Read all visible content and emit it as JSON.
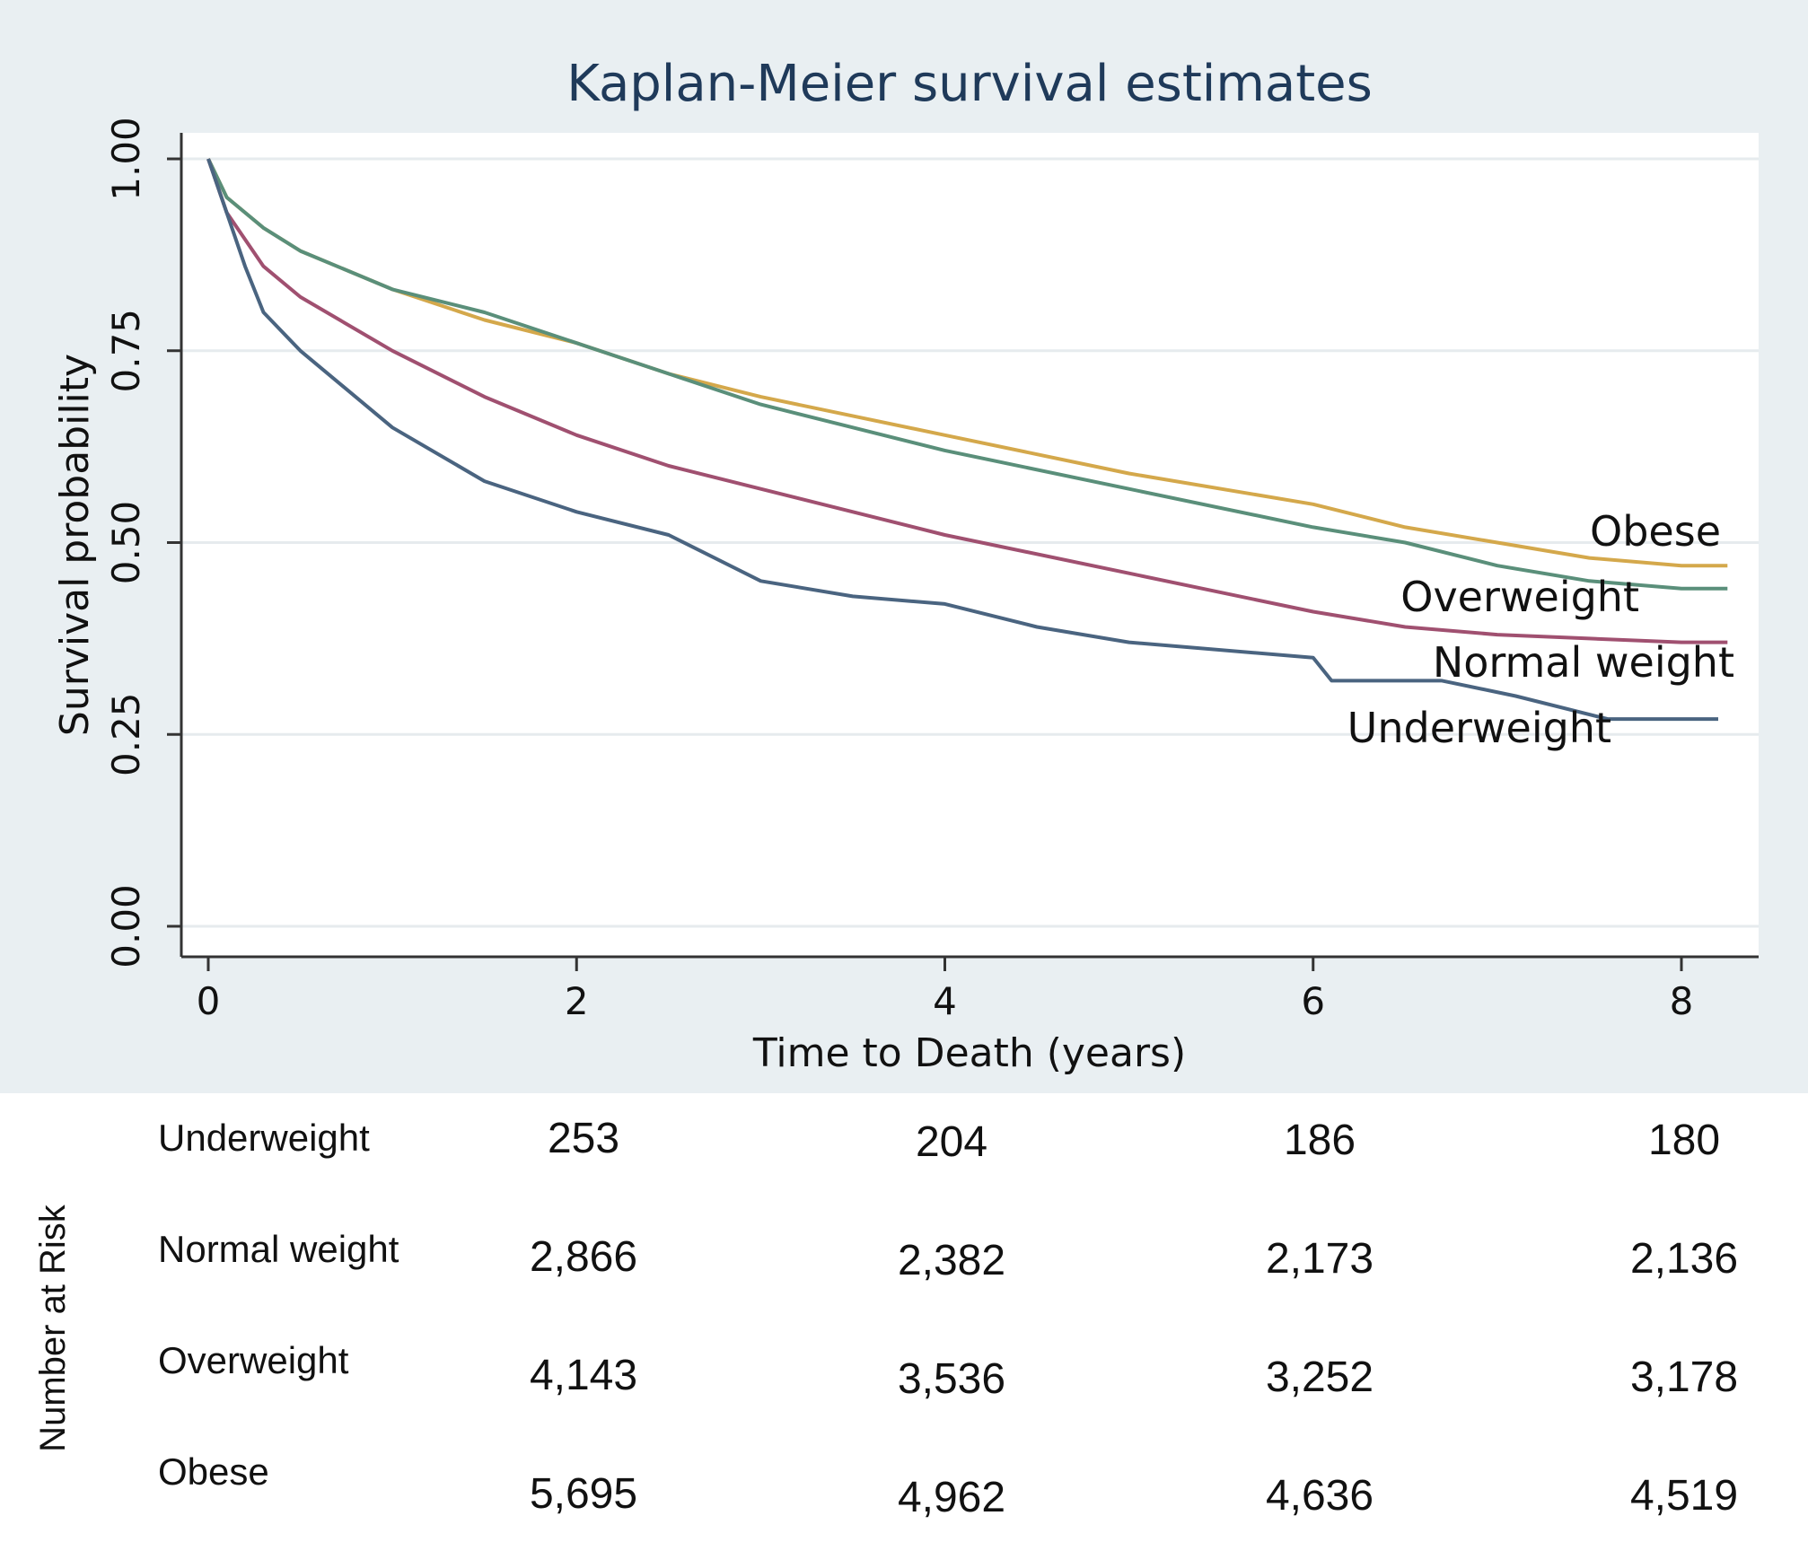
{
  "chart_data": {
    "type": "line",
    "title": "Kaplan-Meier survival estimates",
    "xlabel": "Time to Death (years)",
    "ylabel": "Survival probability",
    "xlim": [
      0,
      8.5
    ],
    "ylim": [
      0,
      1
    ],
    "xticks": [
      "0",
      "2",
      "4",
      "6",
      "8"
    ],
    "yticks": [
      "0.00",
      "0.25",
      "0.50",
      "0.75",
      "1.00"
    ],
    "grid": "horizontal",
    "legend": "inline labels at right end of curves",
    "series": [
      {
        "name": "Obese",
        "color": "#d4a84b",
        "x": [
          0,
          0.1,
          0.3,
          0.5,
          1.0,
          1.5,
          2.0,
          2.5,
          3.0,
          4.0,
          5.0,
          6.0,
          6.5,
          7.0,
          7.5,
          8.0,
          8.25
        ],
        "y": [
          1.0,
          0.95,
          0.91,
          0.88,
          0.83,
          0.79,
          0.76,
          0.72,
          0.69,
          0.64,
          0.59,
          0.55,
          0.52,
          0.5,
          0.48,
          0.47,
          0.47
        ]
      },
      {
        "name": "Overweight",
        "color": "#5a8f7a",
        "x": [
          0,
          0.1,
          0.3,
          0.5,
          1.0,
          1.5,
          2.0,
          2.5,
          3.0,
          4.0,
          5.0,
          6.0,
          6.5,
          7.0,
          7.5,
          8.0,
          8.25
        ],
        "y": [
          1.0,
          0.95,
          0.91,
          0.88,
          0.83,
          0.8,
          0.76,
          0.72,
          0.68,
          0.62,
          0.57,
          0.52,
          0.5,
          0.47,
          0.45,
          0.44,
          0.44
        ]
      },
      {
        "name": "Normal weight",
        "color": "#a05070",
        "x": [
          0,
          0.1,
          0.3,
          0.5,
          1.0,
          1.5,
          2.0,
          2.5,
          3.0,
          4.0,
          5.0,
          6.0,
          6.5,
          7.0,
          7.5,
          8.0,
          8.25
        ],
        "y": [
          1.0,
          0.93,
          0.86,
          0.82,
          0.75,
          0.69,
          0.64,
          0.6,
          0.57,
          0.51,
          0.46,
          0.41,
          0.39,
          0.38,
          0.375,
          0.37,
          0.37
        ]
      },
      {
        "name": "Underweight",
        "color": "#4a6480",
        "x": [
          0,
          0.1,
          0.2,
          0.3,
          0.5,
          1.0,
          1.5,
          2.0,
          2.5,
          3.0,
          3.5,
          4.0,
          4.5,
          5.0,
          6.0,
          6.1,
          6.7,
          7.1,
          7.6,
          8.2
        ],
        "y": [
          1.0,
          0.93,
          0.86,
          0.8,
          0.75,
          0.65,
          0.58,
          0.54,
          0.51,
          0.45,
          0.43,
          0.42,
          0.39,
          0.37,
          0.35,
          0.32,
          0.32,
          0.3,
          0.27,
          0.27
        ]
      }
    ]
  },
  "risk_table": {
    "title": "Number at Risk",
    "rows": [
      {
        "group": "Underweight",
        "values": [
          "253",
          "204",
          "186",
          "180"
        ]
      },
      {
        "group": "Normal weight",
        "values": [
          "2,866",
          "2,382",
          "2,173",
          "2,136"
        ]
      },
      {
        "group": "Overweight",
        "values": [
          "4,143",
          "3,536",
          "3,252",
          "3,178"
        ]
      },
      {
        "group": "Obese",
        "values": [
          "5,695",
          "4,962",
          "4,636",
          "4,519"
        ]
      }
    ]
  }
}
